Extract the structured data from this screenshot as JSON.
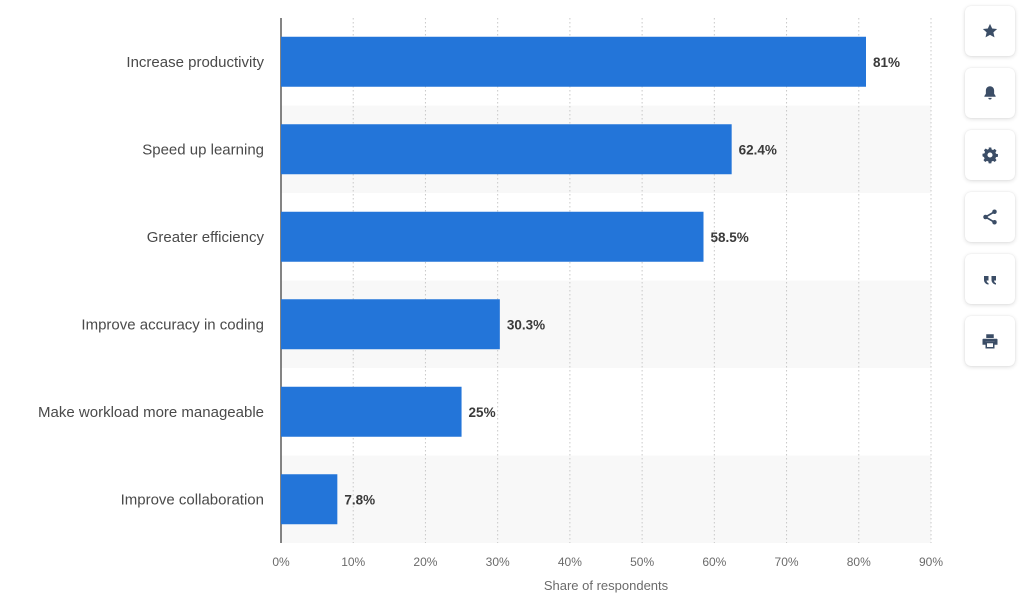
{
  "chart_data": {
    "type": "bar",
    "orientation": "horizontal",
    "categories": [
      "Increase productivity",
      "Speed up learning",
      "Greater efficiency",
      "Improve accuracy in coding",
      "Make workload more manageable",
      "Improve collaboration"
    ],
    "values": [
      81,
      62.4,
      58.5,
      30.3,
      25,
      7.8
    ],
    "value_labels": [
      "81%",
      "62.4%",
      "58.5%",
      "30.3%",
      "25%",
      "7.8%"
    ],
    "xlabel": "Share of respondents",
    "ylabel": "",
    "xlim": [
      0,
      90
    ],
    "x_ticks": [
      "0%",
      "10%",
      "20%",
      "30%",
      "40%",
      "50%",
      "60%",
      "70%",
      "80%",
      "90%"
    ],
    "grid": "vertical dotted",
    "bar_color": "#2375d9",
    "alternate_row_color": "#f8f8f8"
  },
  "toolbar": {
    "items": [
      {
        "icon": "star-icon",
        "name": "favorite-button"
      },
      {
        "icon": "bell-icon",
        "name": "notification-button"
      },
      {
        "icon": "gear-icon",
        "name": "settings-button"
      },
      {
        "icon": "share-icon",
        "name": "share-button"
      },
      {
        "icon": "quote-icon",
        "name": "cite-button"
      },
      {
        "icon": "print-icon",
        "name": "print-button"
      }
    ],
    "icon_color": "#3b4d66"
  }
}
